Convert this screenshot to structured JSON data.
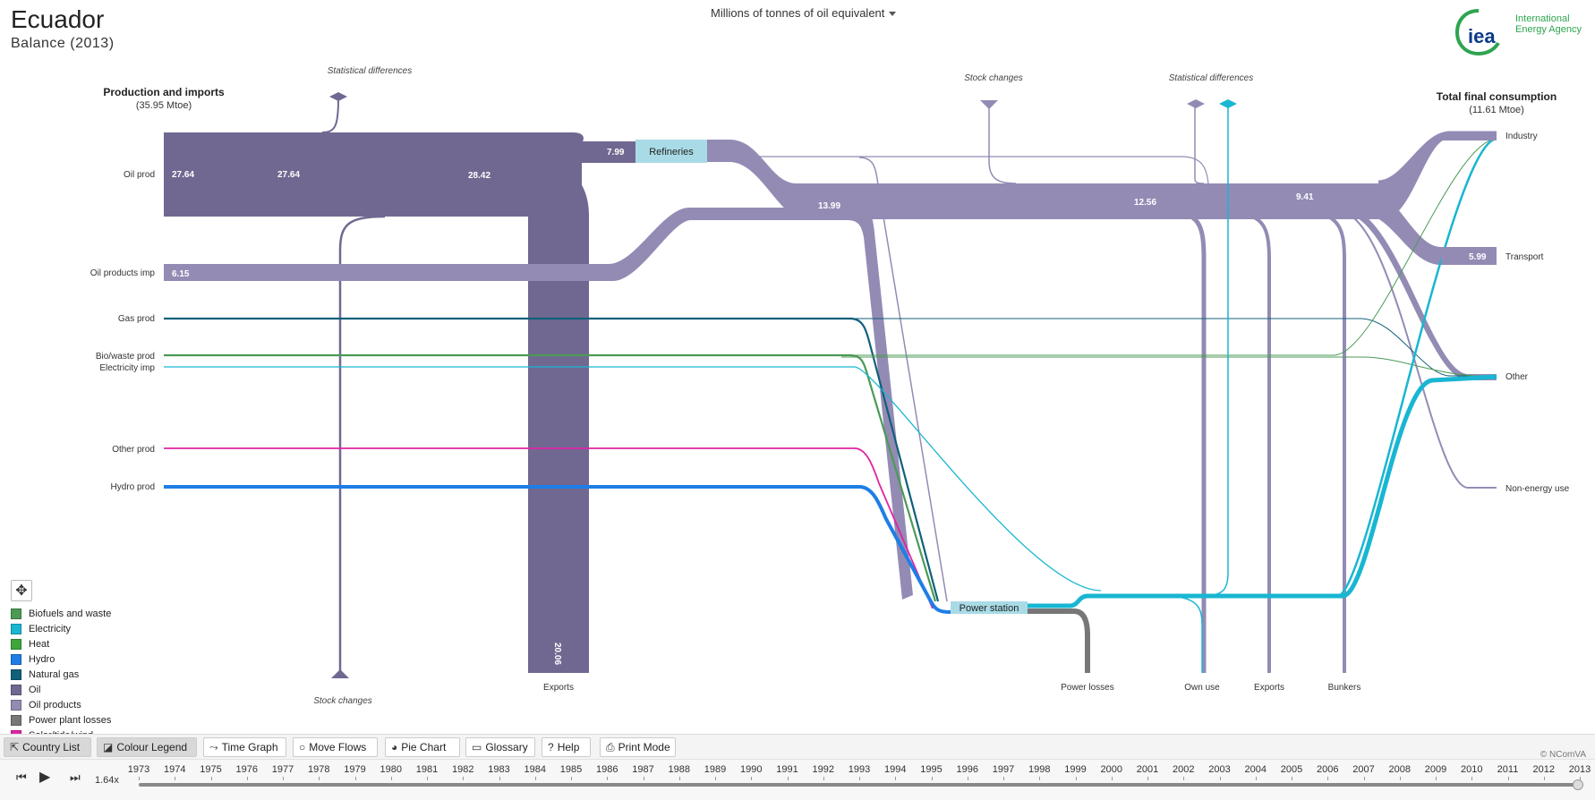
{
  "header": {
    "country": "Ecuador",
    "subtitle": "Balance (2013)",
    "unit": "Millions of tonnes of oil equivalent",
    "logo_text": "International Energy Agency",
    "logo_mark": "iea"
  },
  "diagram": {
    "left_title": "Production and imports",
    "left_total": "(35.95 Mtoe)",
    "right_title": "Total final consumption",
    "right_total": "(11.61 Mtoe)",
    "sources": [
      "Oil prod",
      "Oil products imp",
      "Gas prod",
      "Bio/waste prod",
      "Electricity imp",
      "Other prod",
      "Hydro prod"
    ],
    "sinks": [
      "Industry",
      "Transport",
      "Other",
      "Non-energy use"
    ],
    "top_labels": [
      "Statistical differences",
      "Stock  changes",
      "Statistical differences"
    ],
    "bottom_labels": [
      "Stock changes",
      "Exports",
      "Power losses",
      "Own use",
      "Exports",
      "Bunkers"
    ],
    "nodes": [
      "Refineries",
      "Power station"
    ],
    "values": {
      "oil_prod_a": "27.64",
      "oil_prod_b": "27.64",
      "oil_total": "28.42",
      "oil_to_refineries": "7.99",
      "oil_exports": "20.06",
      "oil_products_imp": "6.15",
      "oil_products_mid": "13.99",
      "oil_products_after": "12.56",
      "oil_products_tfc": "9.41",
      "transport": "5.99"
    }
  },
  "colors": {
    "oil": "#716891",
    "oil_products": "#938bb4",
    "natural_gas": "#0f607a",
    "biofuels": "#4c9a55",
    "electricity": "#18b6d2",
    "hydro": "#1e7ee6",
    "other": "#e024a4",
    "power_losses": "#777777",
    "heat": "#3ea53a",
    "node": "#a8dbe6"
  },
  "legend": [
    {
      "label": "Biofuels and waste",
      "color": "#4c9a55"
    },
    {
      "label": "Electricity",
      "color": "#18b6d2"
    },
    {
      "label": "Heat",
      "color": "#3ea53a"
    },
    {
      "label": "Hydro",
      "color": "#1e7ee6"
    },
    {
      "label": "Natural gas",
      "color": "#0f607a"
    },
    {
      "label": "Oil",
      "color": "#716891"
    },
    {
      "label": "Oil products",
      "color": "#938bb4"
    },
    {
      "label": "Power plant losses",
      "color": "#777777"
    },
    {
      "label": "Solar/tide/wind",
      "color": "#e024a4"
    }
  ],
  "toolbar": {
    "country_list": "Country List",
    "colour_legend": "Colour Legend",
    "time_graph": "Time Graph",
    "move_flows": "Move Flows",
    "pie_chart": "Pie Chart",
    "glossary": "Glossary",
    "help": "Help",
    "print_mode": "Print Mode"
  },
  "credit": "© NComVA",
  "timeline": {
    "speed": "1.64x",
    "years": [
      "1973",
      "1974",
      "1975",
      "1976",
      "1977",
      "1978",
      "1979",
      "1980",
      "1981",
      "1982",
      "1983",
      "1984",
      "1985",
      "1986",
      "1987",
      "1988",
      "1989",
      "1990",
      "1991",
      "1992",
      "1993",
      "1994",
      "1995",
      "1996",
      "1997",
      "1998",
      "1999",
      "2000",
      "2001",
      "2002",
      "2003",
      "2004",
      "2005",
      "2006",
      "2007",
      "2008",
      "2009",
      "2010",
      "2011",
      "2012",
      "2013"
    ],
    "selected": "2013"
  }
}
